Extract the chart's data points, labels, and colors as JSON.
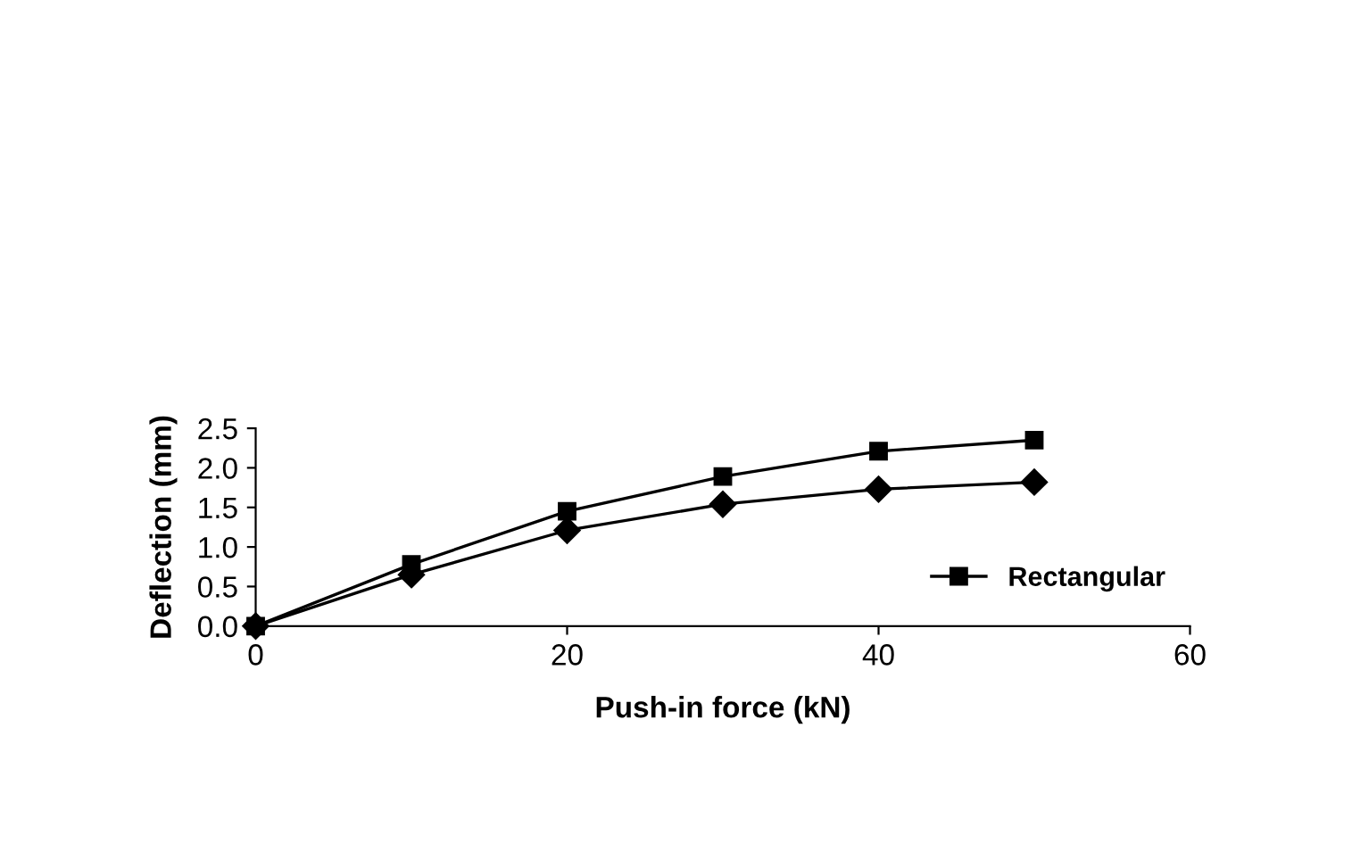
{
  "chart_data": {
    "type": "line",
    "xlabel": "Push-in force (kN)",
    "ylabel": "Deflection (mm)",
    "x": [
      0,
      10,
      20,
      30,
      40,
      50
    ],
    "series": [
      {
        "color": "#000000",
        "marker": "diamond",
        "values": [
          0,
          0.65,
          1.21,
          1.54,
          1.73,
          1.82
        ]
      },
      {
        "name": "Rectangular",
        "color": "#000000",
        "marker": "square",
        "values": [
          0,
          0.78,
          1.45,
          1.89,
          2.21,
          2.35
        ]
      }
    ],
    "xlim": [
      0,
      60
    ],
    "xticks": [
      0,
      20,
      40,
      60
    ],
    "ylim": [
      0,
      2.5
    ],
    "yticks": [
      {
        "value": 0,
        "label": "0.0"
      },
      {
        "value": 0.5,
        "label": "0.5"
      },
      {
        "value": 1,
        "label": "1.0"
      },
      {
        "value": 1.5,
        "label": "1.5"
      },
      {
        "value": 2,
        "label": "2.0"
      },
      {
        "value": 2.5,
        "label": "2.5"
      }
    ],
    "grid": false,
    "legend": "bottom right"
  }
}
